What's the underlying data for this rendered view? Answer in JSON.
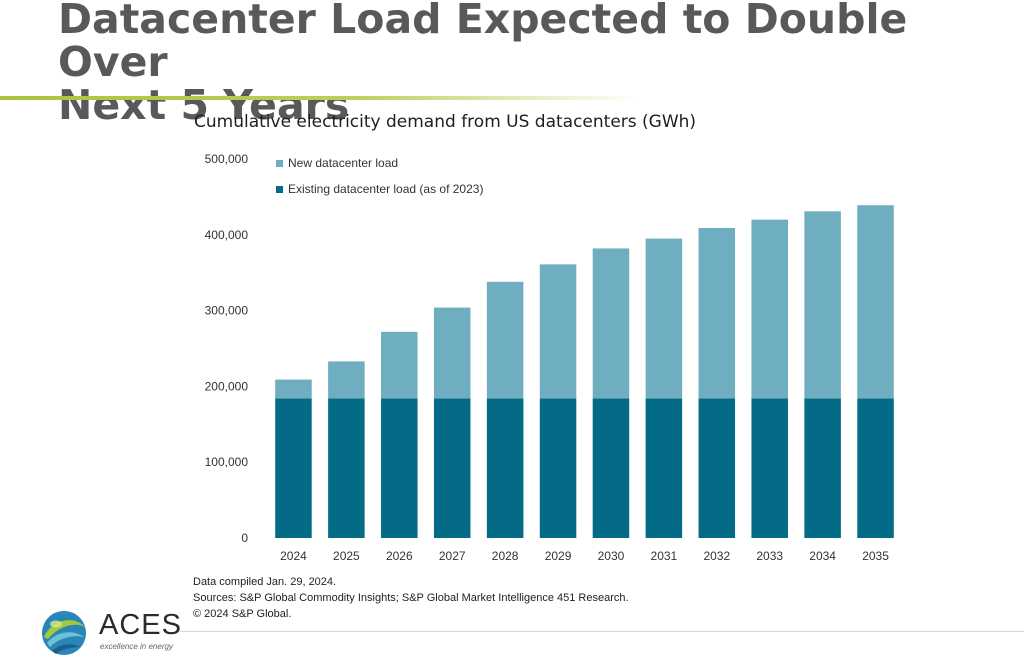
{
  "slide": {
    "title_line1": "Datacenter Load Expected to Double Over",
    "title_line2": "Next 5 Years"
  },
  "notes": [
    "Data compiled Jan. 29, 2024.",
    "Sources: S&P Global Commodity Insights; S&P Global Market Intelligence 451 Research.",
    "© 2024 S&P Global."
  ],
  "logo": {
    "name": "ACES",
    "tagline": "excellence in energy"
  },
  "colors": {
    "existing": "#036b86",
    "new": "#6fadc0",
    "title": "#595959",
    "accent": "#a7c43c"
  },
  "chart_data": {
    "type": "bar",
    "stacked": true,
    "title": "Cumulative electricity demand from US datacenters (GWh)",
    "categories": [
      "2024",
      "2025",
      "2026",
      "2027",
      "2028",
      "2029",
      "2030",
      "2031",
      "2032",
      "2033",
      "2034",
      "2035"
    ],
    "series": [
      {
        "name": "Existing datacenter load (as of 2023)",
        "color": "#036b86",
        "values": [
          184000,
          184000,
          184000,
          184000,
          184000,
          184000,
          184000,
          184000,
          184000,
          184000,
          184000,
          184000
        ]
      },
      {
        "name": "New datacenter load",
        "color": "#6fadc0",
        "values": [
          25000,
          49000,
          88000,
          120000,
          154000,
          177000,
          198000,
          211000,
          225000,
          236000,
          247000,
          255000
        ]
      }
    ],
    "ylim": [
      0,
      500000
    ],
    "yticks": [
      0,
      100000,
      200000,
      300000,
      400000,
      500000
    ],
    "ytick_labels": [
      "0",
      "100,000",
      "200,000",
      "300,000",
      "400,000",
      "500,000"
    ],
    "grid": false,
    "legend_position": "top-left"
  }
}
